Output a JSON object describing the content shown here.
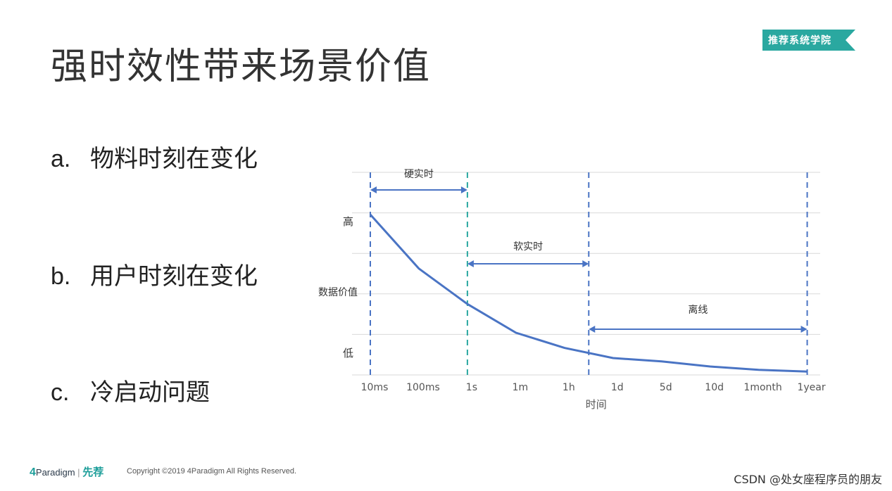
{
  "slide": {
    "title": "强时效性带来场景价值",
    "badge": "推荐系统学院",
    "bullets": [
      {
        "marker": "a.",
        "text": "物料时刻在变化"
      },
      {
        "marker": "b.",
        "text": "用户时刻在变化"
      },
      {
        "marker": "c.",
        "text": "冷启动问题"
      }
    ],
    "footer": {
      "logo_prefix": "4",
      "logo_name": "Paradigm",
      "logo_second": "先荐",
      "copyright": "Copyright ©2019 4Paradigm All Rights Reserved."
    },
    "watermark": "CSDN @处女座程序员的朋友",
    "colors": {
      "line": "#4a74c4",
      "dashed_blue": "#4a74c4",
      "dashed_teal": "#2aa8a0",
      "badge": "#2aa8a0"
    }
  },
  "chart_data": {
    "type": "line",
    "categories": [
      "10ms",
      "100ms",
      "1s",
      "1m",
      "1h",
      "1d",
      "5d",
      "10d",
      "1month",
      "1year"
    ],
    "values": [
      0.95,
      0.63,
      0.42,
      0.25,
      0.16,
      0.1,
      0.08,
      0.05,
      0.03,
      0.02
    ],
    "ylabel": "数据价值",
    "xlabel": "时间",
    "y_ticks": {
      "high": "高",
      "low": "低"
    },
    "ylim": [
      0,
      1.2
    ],
    "grid": true,
    "regions": [
      {
        "label": "硬实时",
        "from": "10ms",
        "to": "1s"
      },
      {
        "label": "软实时",
        "from": "1s",
        "to": "1h"
      },
      {
        "label": "离线",
        "from": "1h",
        "to": "1year"
      }
    ]
  }
}
